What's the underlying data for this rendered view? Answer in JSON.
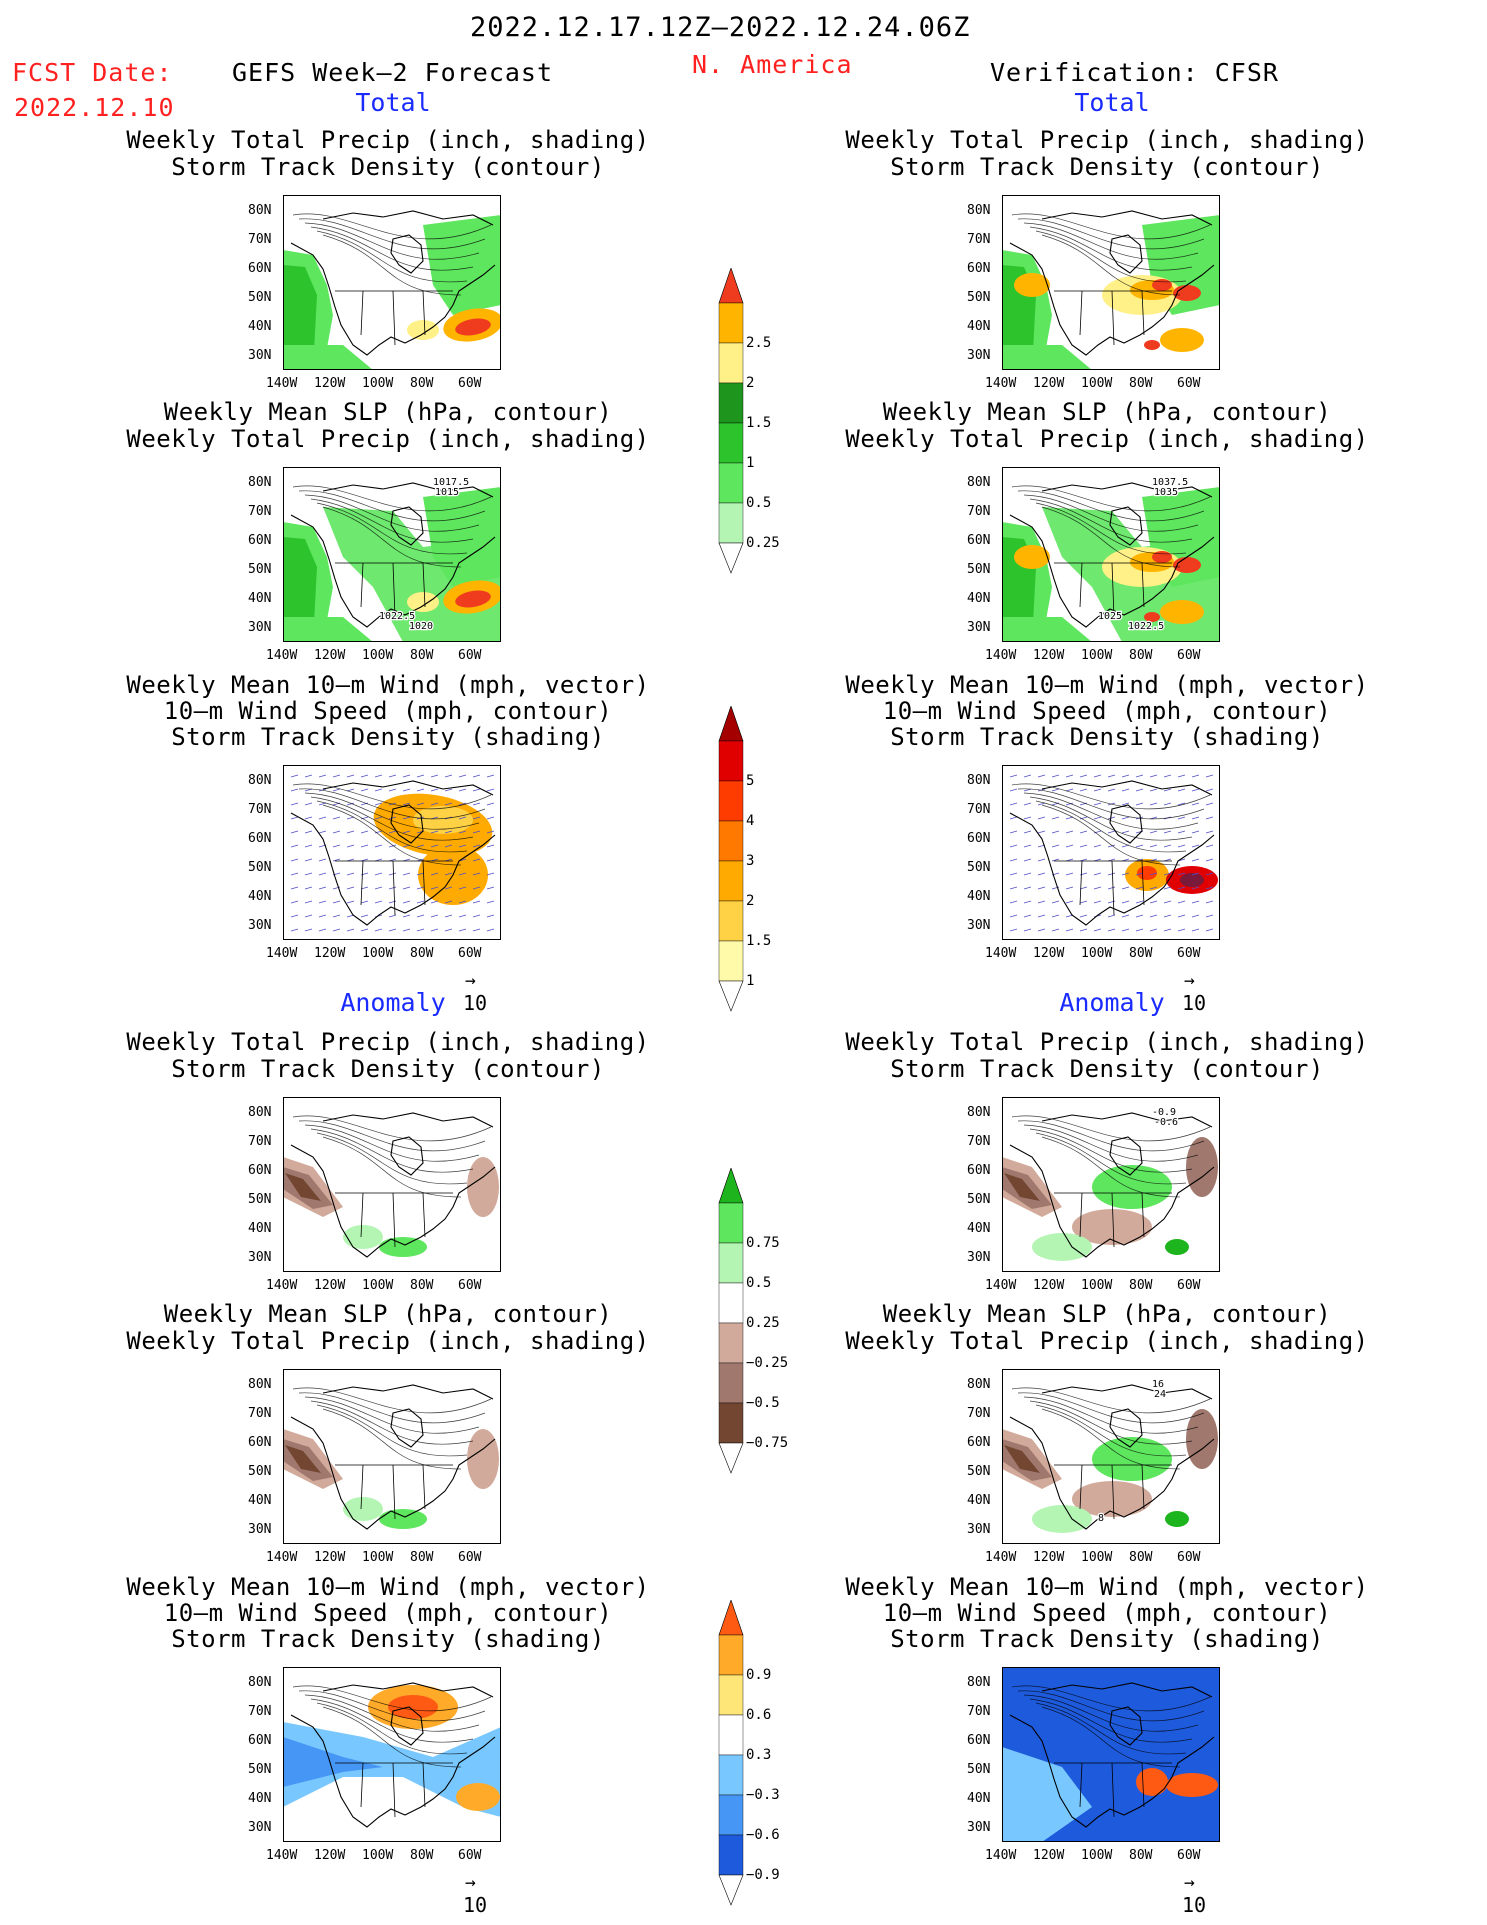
{
  "header": {
    "period": "2022.12.17.12Z—2022.12.24.06Z",
    "fcst_label": "FCST Date:",
    "fcst_date": "2022.12.10",
    "forecast_title": "GEFS Week—2 Forecast",
    "region": "N. America",
    "verification": "Verification: CFSR"
  },
  "sections": {
    "total": "Total",
    "anomaly": "Anomaly"
  },
  "titles": {
    "precip_track": [
      "Weekly Total Precip (inch, shading)",
      "Storm Track Density (contour)"
    ],
    "slp_precip": [
      "Weekly Mean SLP (hPa, contour)",
      "Weekly Total Precip (inch, shading)"
    ],
    "wind": [
      "Weekly Mean 10—m Wind (mph, vector)",
      "10—m Wind Speed (mph, contour)",
      "Storm Track Density (shading)"
    ]
  },
  "axes": {
    "lat_labels": [
      "80N",
      "70N",
      "60N",
      "50N",
      "40N",
      "30N"
    ],
    "lon_labels": [
      "140W",
      "120W",
      "100W",
      "80W",
      "60W"
    ]
  },
  "vector_scale": "10",
  "contour_labels": {
    "total_slp_fcst": [
      "1017.5",
      "1015",
      "1022.5",
      "1020"
    ],
    "total_slp_obs": [
      "1037.5",
      "1035",
      "1025",
      "1022.5"
    ],
    "anom_precip_obs": [
      "-0.9",
      "-0.6"
    ],
    "anom_slp_obs": [
      "16",
      "24",
      "8"
    ]
  },
  "colorbars": {
    "total_precip": [
      "0.25",
      "0.5",
      "1",
      "1.5",
      "2",
      "2.5"
    ],
    "total_track": [
      "1",
      "1.5",
      "2",
      "3",
      "4",
      "5"
    ],
    "anom_precip": [
      "−0.75",
      "−0.5",
      "−0.25",
      "0.25",
      "0.5",
      "0.75"
    ],
    "anom_track": [
      "−0.9",
      "−0.6",
      "−0.3",
      "0.3",
      "0.6",
      "0.9"
    ]
  },
  "colors": {
    "precip": [
      "#b4f5b4",
      "#5ee65e",
      "#2cc32c",
      "#1e961e",
      "#fff087",
      "#ffb400",
      "#f03c1e"
    ],
    "track": [
      "#fffaaa",
      "#ffd246",
      "#ffaa00",
      "#ff7800",
      "#ff3c00",
      "#e10000",
      "#a50000"
    ],
    "anom_precip": [
      "#734632",
      "#a0786e",
      "#d2aa9b",
      "#ffffff",
      "#b4f5b4",
      "#5ee65e",
      "#1eb41e"
    ],
    "anom_track": [
      "#1e5adc",
      "#4696f5",
      "#78c8ff",
      "#ffffff",
      "#ffe678",
      "#ffaa28",
      "#ff5a14"
    ]
  }
}
